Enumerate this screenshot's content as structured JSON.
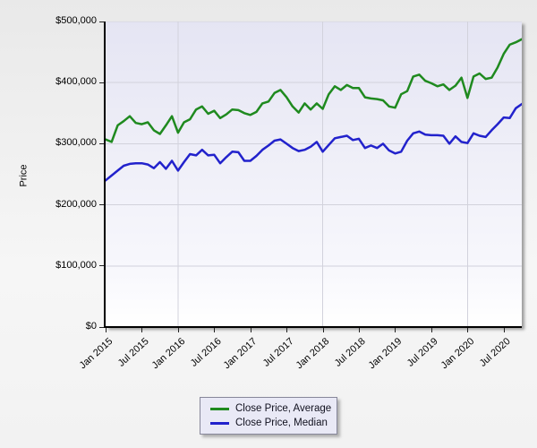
{
  "chart_data": {
    "type": "line",
    "title": "",
    "xlabel": "",
    "ylabel": "Price",
    "ylim": [
      0,
      500000
    ],
    "grid": true,
    "legend_position": "bottom-center",
    "x_frequency": "monthly",
    "x_start": "Jan 2015",
    "x_end": "Oct 2020",
    "y_tick_values": [
      0,
      100000,
      200000,
      300000,
      400000,
      500000
    ],
    "y_tick_labels": [
      "$0",
      "$100,000",
      "$200,000",
      "$300,000",
      "$400,000",
      "$500,000"
    ],
    "x_tick_labels": [
      "Jan 2015",
      "Jul 2015",
      "Jan 2016",
      "Jul 2016",
      "Jan 2017",
      "Jul 2017",
      "Jan 2018",
      "Jul 2018",
      "Jan 2019",
      "Jul 2019",
      "Jan 2020",
      "Jul 2020"
    ],
    "x_tick_month_indices": [
      0,
      6,
      12,
      18,
      24,
      30,
      36,
      42,
      48,
      54,
      60,
      66
    ],
    "vertical_gridline_month_indices": [
      12,
      36,
      60
    ],
    "gridline_color": "#d2d2dc",
    "series": [
      {
        "name": "Close Price, Average",
        "color": "#1f8a1f",
        "values": [
          307000,
          303000,
          330000,
          337000,
          345000,
          334000,
          332000,
          335000,
          322000,
          316000,
          330000,
          345000,
          318000,
          335000,
          340000,
          356000,
          361000,
          349000,
          354000,
          342000,
          348000,
          356000,
          355000,
          350000,
          347000,
          352000,
          366000,
          369000,
          383000,
          388000,
          376000,
          361000,
          351000,
          366000,
          356000,
          366000,
          357000,
          381000,
          394000,
          388000,
          396000,
          391000,
          391000,
          376000,
          374000,
          373000,
          371000,
          361000,
          359000,
          381000,
          386000,
          410000,
          413000,
          403000,
          399000,
          394000,
          397000,
          388000,
          395000,
          408000,
          375000,
          410000,
          415000,
          406000,
          408000,
          425000,
          447000,
          462000,
          466000,
          471000
        ]
      },
      {
        "name": "Close Price, Median",
        "color": "#2222cc",
        "values": [
          240000,
          248000,
          256000,
          264000,
          267000,
          268000,
          268000,
          266000,
          260000,
          270000,
          259000,
          272000,
          256000,
          270000,
          283000,
          281000,
          290000,
          281000,
          282000,
          268000,
          278000,
          287000,
          286000,
          272000,
          272000,
          280000,
          290000,
          297000,
          305000,
          307000,
          300000,
          293000,
          288000,
          290000,
          295000,
          303000,
          287000,
          298000,
          309000,
          311000,
          313000,
          306000,
          308000,
          293000,
          297000,
          293000,
          300000,
          289000,
          284000,
          287000,
          305000,
          317000,
          320000,
          315000,
          314000,
          314000,
          313000,
          300000,
          312000,
          303000,
          301000,
          317000,
          313000,
          311000,
          322000,
          332000,
          343000,
          342000,
          358000,
          365000
        ]
      }
    ]
  },
  "legend": {
    "items": [
      {
        "label": "Close Price, Average",
        "color": "#1f8a1f"
      },
      {
        "label": "Close Price, Median",
        "color": "#2222cc"
      }
    ]
  }
}
